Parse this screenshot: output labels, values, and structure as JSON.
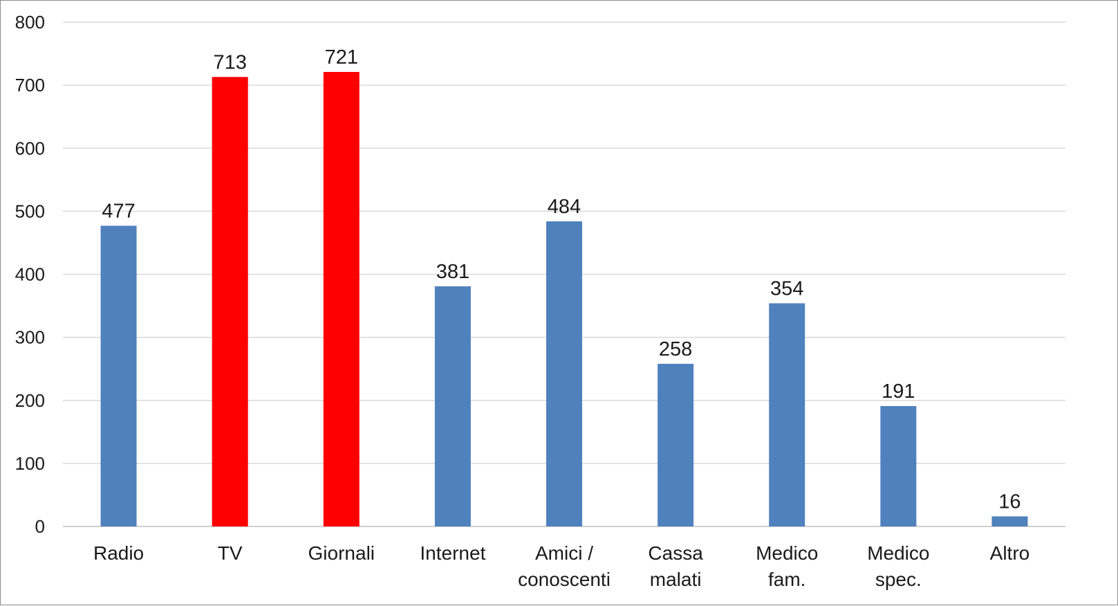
{
  "chart_data": {
    "type": "bar",
    "title": "",
    "xlabel": "",
    "ylabel": "",
    "categories": [
      [
        "Radio"
      ],
      [
        "TV"
      ],
      [
        "Giornali"
      ],
      [
        "Internet"
      ],
      [
        "Amici /",
        "conoscenti"
      ],
      [
        "Cassa",
        "malati"
      ],
      [
        "Medico",
        "fam."
      ],
      [
        "Medico",
        "spec."
      ],
      [
        "Altro"
      ]
    ],
    "values": [
      477,
      713,
      721,
      381,
      484,
      258,
      354,
      191,
      16
    ],
    "bar_colors": [
      "#4f81bd",
      "#ff0000",
      "#ff0000",
      "#4f81bd",
      "#4f81bd",
      "#4f81bd",
      "#4f81bd",
      "#4f81bd",
      "#4f81bd"
    ],
    "ylim": [
      0,
      800
    ],
    "yticks": [
      0,
      100,
      200,
      300,
      400,
      500,
      600,
      700,
      800
    ],
    "grid": true,
    "legend": "none"
  }
}
